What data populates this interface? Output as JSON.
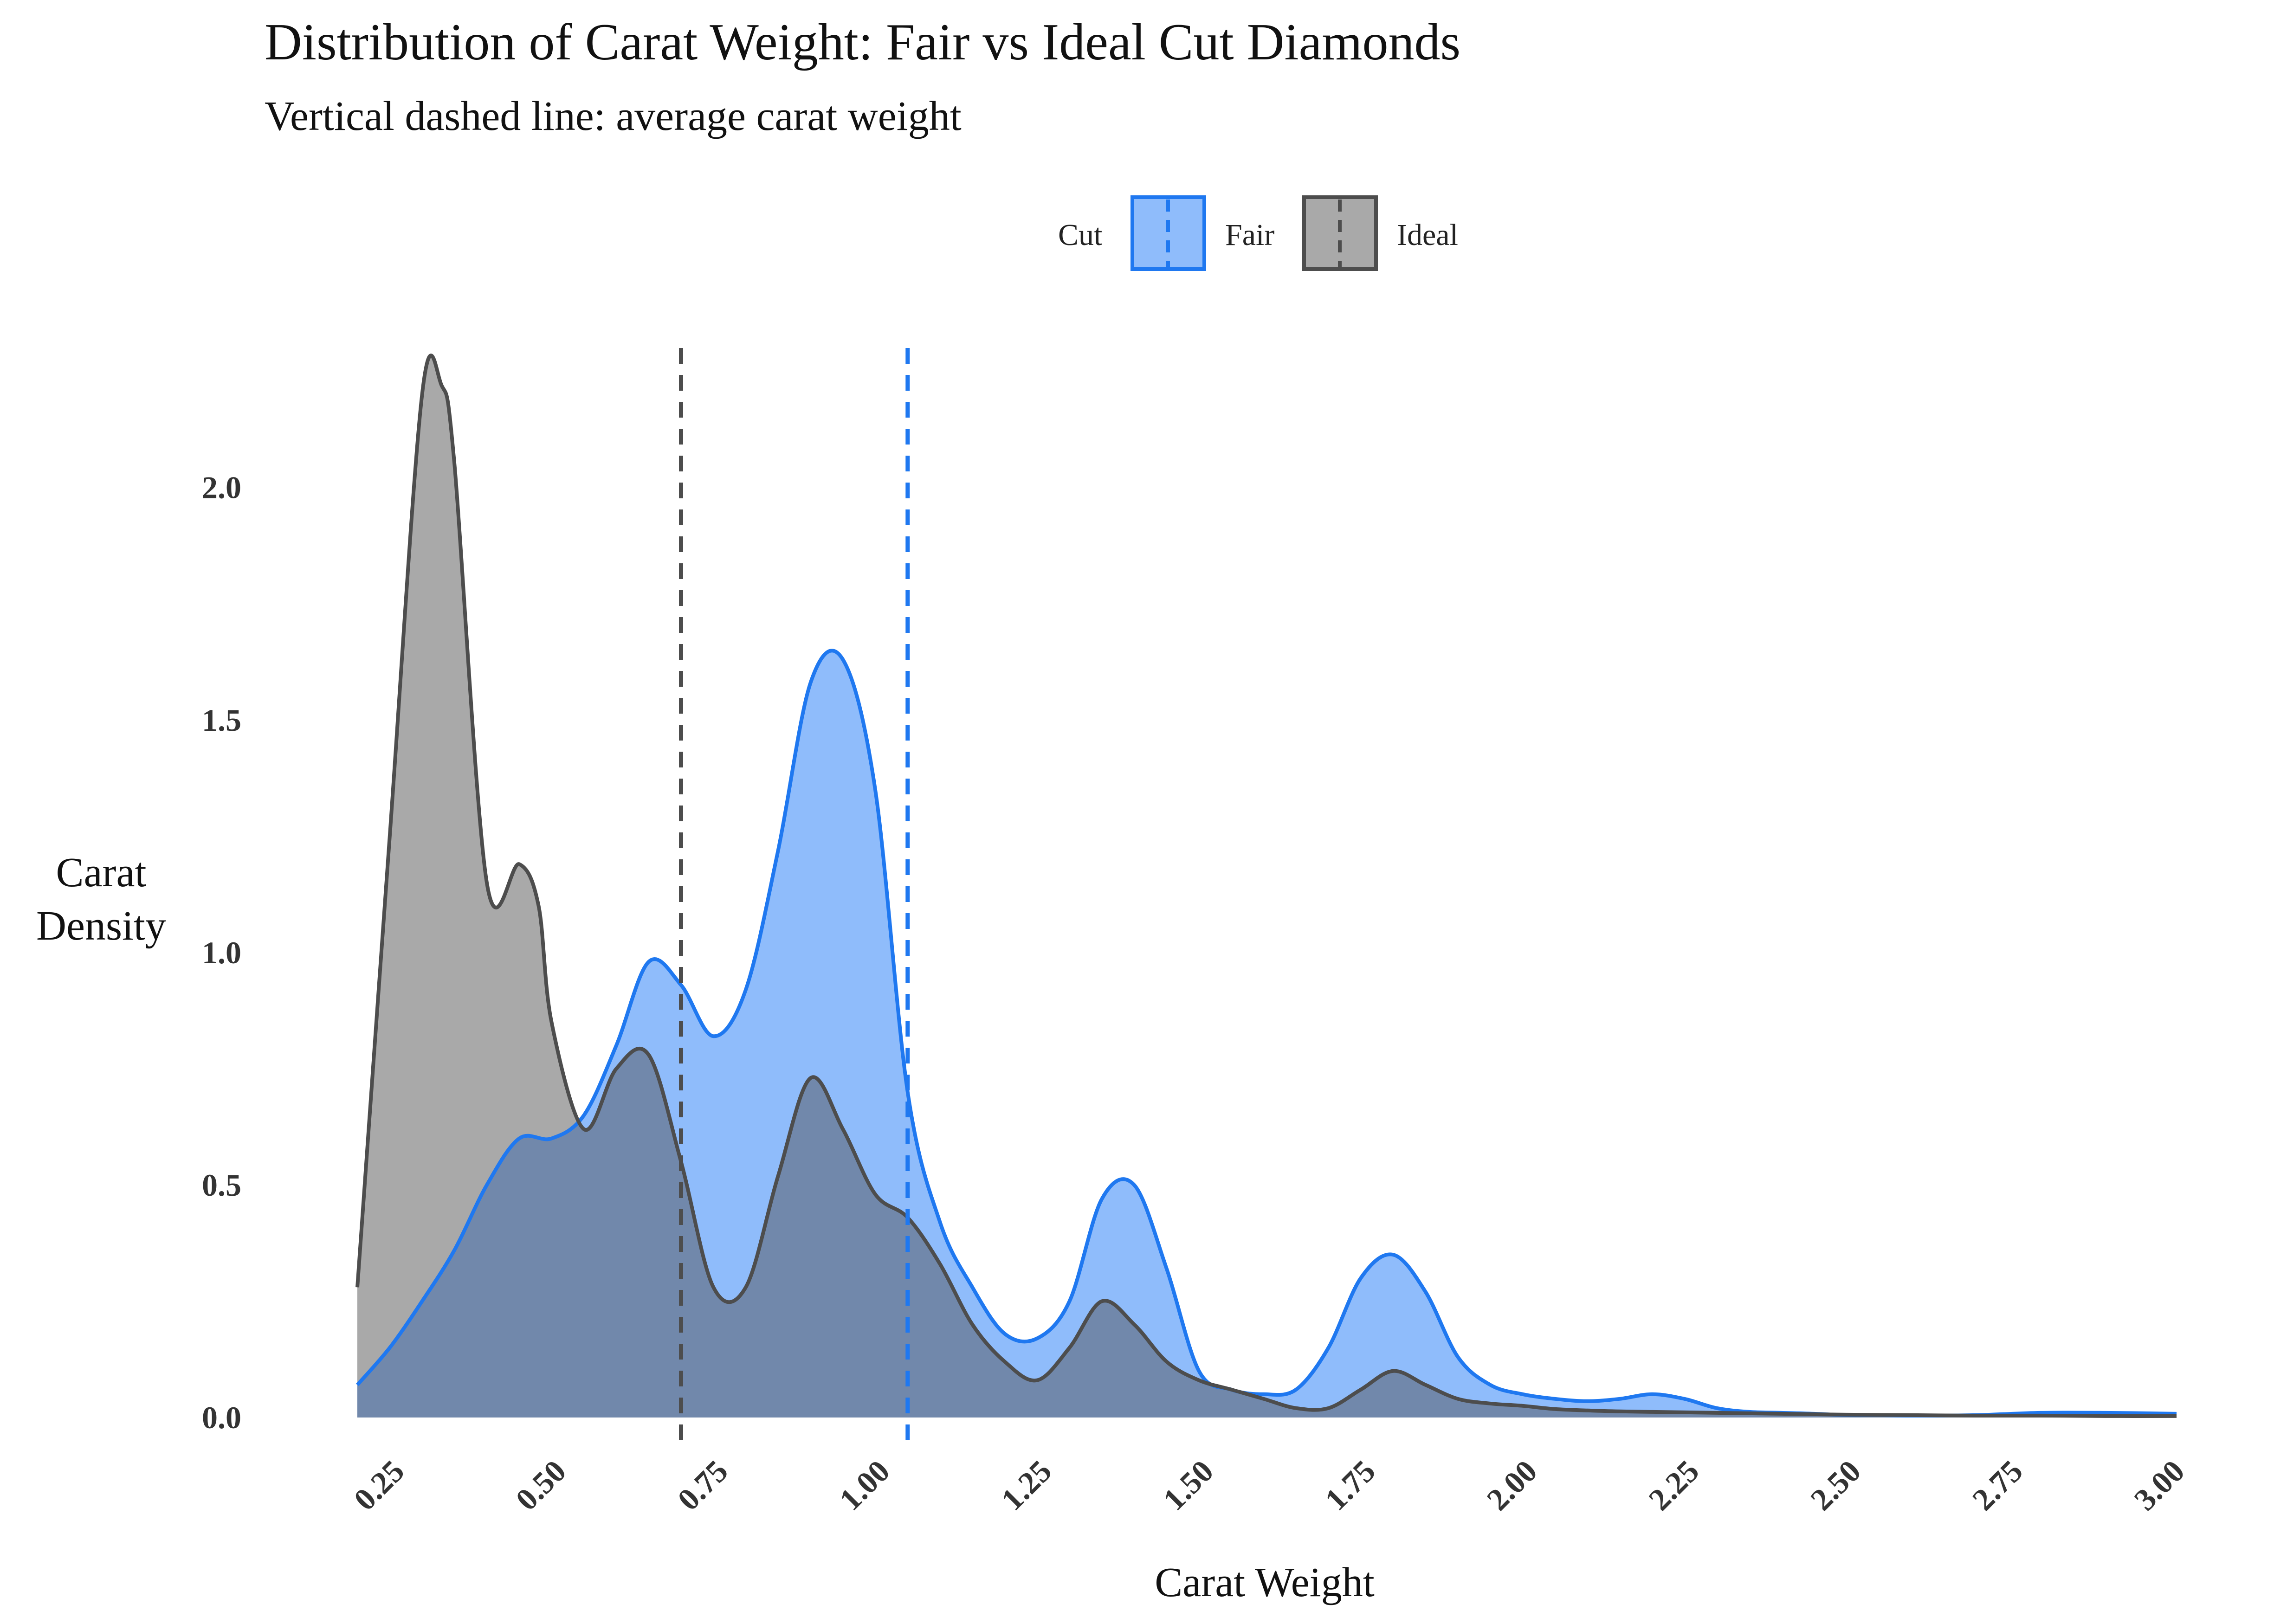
{
  "chart_data": {
    "type": "area",
    "title": "Distribution of Carat Weight: Fair vs Ideal Cut Diamonds",
    "subtitle": "Vertical dashed line: average carat weight",
    "xlabel": "Carat Weight",
    "ylabel_lines": [
      "Carat",
      "Density"
    ],
    "xlim": [
      0.2,
      3.01
    ],
    "ylim": [
      -0.06,
      2.35
    ],
    "x_ticks": [
      0.25,
      0.5,
      0.75,
      1.0,
      1.25,
      1.5,
      1.75,
      2.0,
      2.25,
      2.5,
      2.75,
      3.0
    ],
    "x_tick_labels": [
      "0.25",
      "0.50",
      "0.75",
      "1.00",
      "1.25",
      "1.50",
      "1.75",
      "2.00",
      "2.25",
      "2.50",
      "2.75",
      "3.00"
    ],
    "y_ticks": [
      0.0,
      0.5,
      1.0,
      1.5,
      2.0
    ],
    "y_tick_labels": [
      "0.0",
      "0.5",
      "1.0",
      "1.5",
      "2.0"
    ],
    "grid": false,
    "legend": {
      "title": "Cut",
      "position": "top-center",
      "entries": [
        "Fair",
        "Ideal"
      ]
    },
    "colors": {
      "fair_line": "#1f78f0",
      "fair_fill": "#8fbcfb",
      "ideal_line": "#4d4d4d",
      "ideal_fill": "#a9a9a9",
      "overlap_fill": "#7188ab",
      "text": "#333333",
      "title": "#111111"
    },
    "series": [
      {
        "name": "Fair",
        "mean": 1.05,
        "x": [
          0.2,
          0.25,
          0.3,
          0.35,
          0.4,
          0.45,
          0.5,
          0.55,
          0.6,
          0.65,
          0.7,
          0.75,
          0.8,
          0.85,
          0.9,
          0.95,
          1.0,
          1.05,
          1.1,
          1.15,
          1.2,
          1.25,
          1.3,
          1.35,
          1.4,
          1.45,
          1.5,
          1.55,
          1.6,
          1.65,
          1.7,
          1.75,
          1.8,
          1.85,
          1.9,
          1.95,
          2.0,
          2.05,
          2.1,
          2.15,
          2.2,
          2.25,
          2.3,
          2.35,
          2.4,
          2.45,
          2.5,
          2.55,
          2.6,
          2.7,
          2.8,
          2.9,
          3.01
        ],
        "values": [
          0.07,
          0.15,
          0.25,
          0.36,
          0.5,
          0.6,
          0.6,
          0.65,
          0.8,
          0.98,
          0.93,
          0.82,
          0.92,
          1.22,
          1.58,
          1.63,
          1.35,
          0.7,
          0.42,
          0.28,
          0.18,
          0.17,
          0.25,
          0.47,
          0.5,
          0.32,
          0.1,
          0.06,
          0.05,
          0.06,
          0.15,
          0.3,
          0.35,
          0.27,
          0.13,
          0.07,
          0.05,
          0.04,
          0.035,
          0.04,
          0.05,
          0.04,
          0.02,
          0.012,
          0.01,
          0.008,
          0.005,
          0.005,
          0.004,
          0.005,
          0.01,
          0.01,
          0.008
        ]
      },
      {
        "name": "Ideal",
        "mean": 0.7,
        "x": [
          0.2,
          0.25,
          0.3,
          0.33,
          0.35,
          0.4,
          0.45,
          0.48,
          0.5,
          0.55,
          0.6,
          0.65,
          0.7,
          0.75,
          0.8,
          0.85,
          0.9,
          0.95,
          1.0,
          1.05,
          1.1,
          1.15,
          1.2,
          1.25,
          1.3,
          1.35,
          1.4,
          1.45,
          1.5,
          1.55,
          1.6,
          1.65,
          1.7,
          1.75,
          1.8,
          1.85,
          1.9,
          1.95,
          2.0,
          2.05,
          2.1,
          2.15,
          2.2,
          2.3,
          2.4,
          2.5,
          2.6,
          2.7,
          2.8,
          2.9,
          3.01
        ],
        "values": [
          0.28,
          1.25,
          2.2,
          2.22,
          2.05,
          1.15,
          1.19,
          1.1,
          0.85,
          0.62,
          0.75,
          0.78,
          0.55,
          0.28,
          0.28,
          0.52,
          0.73,
          0.62,
          0.48,
          0.43,
          0.33,
          0.2,
          0.12,
          0.08,
          0.15,
          0.25,
          0.2,
          0.12,
          0.08,
          0.06,
          0.04,
          0.02,
          0.02,
          0.06,
          0.1,
          0.07,
          0.04,
          0.03,
          0.025,
          0.018,
          0.015,
          0.013,
          0.012,
          0.01,
          0.008,
          0.006,
          0.005,
          0.004,
          0.004,
          0.003,
          0.003
        ]
      }
    ]
  }
}
